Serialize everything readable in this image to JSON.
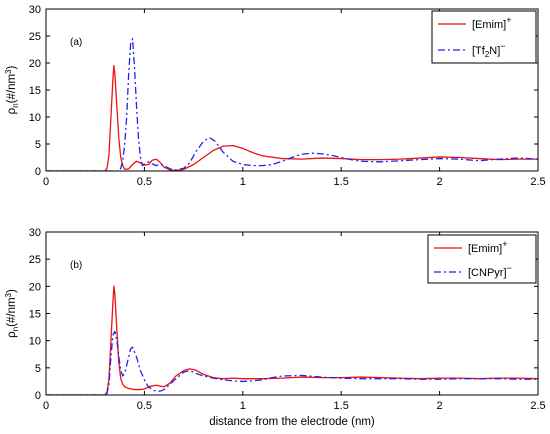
{
  "chart_data": [
    {
      "type": "line",
      "panel_label": "(a)",
      "xlabel": "",
      "ylabel": "ρ",
      "ylabel_sub": "n",
      "ylabel_unit": "(#/nm",
      "ylabel_sup": "3",
      "ylabel_close": ")",
      "xlim": [
        0,
        2.5
      ],
      "ylim": [
        0,
        30
      ],
      "xticks": [
        0,
        0.5,
        1,
        1.5,
        2,
        2.5
      ],
      "xtick_labels": [
        "0",
        "0.5",
        "1",
        "1.5",
        "2",
        "2.5"
      ],
      "yticks": [
        0,
        5,
        10,
        15,
        20,
        25,
        30
      ],
      "ytick_labels": [
        "0",
        "5",
        "10",
        "15",
        "20",
        "25",
        "30"
      ],
      "grid": false,
      "legend_position": "top-right",
      "series": [
        {
          "name": "[Emim]",
          "name_sup": "+",
          "color": "#ee1111",
          "style": "solid",
          "x": [
            0,
            0.3,
            0.31,
            0.32,
            0.33,
            0.34,
            0.345,
            0.35,
            0.36,
            0.37,
            0.38,
            0.39,
            0.4,
            0.42,
            0.44,
            0.46,
            0.48,
            0.5,
            0.52,
            0.54,
            0.56,
            0.58,
            0.6,
            0.63,
            0.66,
            0.7,
            0.75,
            0.8,
            0.85,
            0.9,
            0.95,
            1.0,
            1.05,
            1.1,
            1.2,
            1.3,
            1.4,
            1.5,
            1.6,
            1.7,
            1.8,
            1.9,
            2.0,
            2.1,
            2.2,
            2.3,
            2.4,
            2.5
          ],
          "y": [
            0,
            0,
            0.5,
            3,
            10,
            17,
            19.5,
            18,
            12,
            6,
            2.5,
            1,
            0.3,
            0.4,
            1.2,
            1.8,
            1.5,
            1.1,
            1.2,
            2,
            2.2,
            1.6,
            0.7,
            0.2,
            0.1,
            0.3,
            1.2,
            2.5,
            3.8,
            4.6,
            4.7,
            4.2,
            3.4,
            2.8,
            2.3,
            2.2,
            2.4,
            2.3,
            2.1,
            2.1,
            2.2,
            2.4,
            2.6,
            2.5,
            2.3,
            2.1,
            2.2,
            2.2
          ]
        },
        {
          "name": "[Tf",
          "name_sub": "2",
          "name_rest": "N]",
          "name_sup": "−",
          "color": "#2222ee",
          "style": "dashdot",
          "x": [
            0,
            0.37,
            0.38,
            0.39,
            0.4,
            0.41,
            0.42,
            0.43,
            0.44,
            0.45,
            0.46,
            0.47,
            0.48,
            0.49,
            0.5,
            0.52,
            0.54,
            0.56,
            0.58,
            0.6,
            0.63,
            0.66,
            0.7,
            0.73,
            0.76,
            0.8,
            0.83,
            0.86,
            0.9,
            0.95,
            1.0,
            1.05,
            1.1,
            1.15,
            1.2,
            1.25,
            1.3,
            1.35,
            1.4,
            1.45,
            1.5,
            1.55,
            1.6,
            1.7,
            1.8,
            1.9,
            2.0,
            2.1,
            2.2,
            2.3,
            2.4,
            2.5
          ],
          "y": [
            0,
            0,
            0.5,
            2,
            5,
            10,
            18,
            23.5,
            24.5,
            19,
            12,
            6,
            2.5,
            1,
            1.3,
            1.7,
            1.3,
            1,
            1.3,
            1,
            0.4,
            0.2,
            0.5,
            1.5,
            3.5,
            5.5,
            6.2,
            5.5,
            3.5,
            1.8,
            1.2,
            1,
            1,
            1.2,
            1.8,
            2.5,
            3.1,
            3.3,
            3.2,
            2.9,
            2.5,
            2.1,
            1.8,
            1.7,
            1.9,
            2.1,
            2.3,
            2.2,
            1.9,
            2.2,
            2.4,
            2.2
          ]
        }
      ]
    },
    {
      "type": "line",
      "panel_label": "(b)",
      "xlabel": "distance from the electrode (nm)",
      "ylabel": "ρ",
      "ylabel_sub": "n",
      "ylabel_unit": "(#/nm",
      "ylabel_sup": "3",
      "ylabel_close": ")",
      "xlim": [
        0,
        2.5
      ],
      "ylim": [
        0,
        30
      ],
      "xticks": [
        0,
        0.5,
        1,
        1.5,
        2,
        2.5
      ],
      "xtick_labels": [
        "0",
        "0.5",
        "1",
        "1.5",
        "2",
        "2.5"
      ],
      "yticks": [
        0,
        5,
        10,
        15,
        20,
        25,
        30
      ],
      "ytick_labels": [
        "0",
        "5",
        "10",
        "15",
        "20",
        "25",
        "30"
      ],
      "grid": false,
      "legend_position": "top-right",
      "series": [
        {
          "name": "[Emim]",
          "name_sup": "+",
          "color": "#ee1111",
          "style": "solid",
          "x": [
            0,
            0.3,
            0.31,
            0.32,
            0.33,
            0.34,
            0.345,
            0.35,
            0.36,
            0.37,
            0.38,
            0.39,
            0.4,
            0.42,
            0.45,
            0.48,
            0.5,
            0.53,
            0.56,
            0.6,
            0.63,
            0.66,
            0.7,
            0.73,
            0.76,
            0.8,
            0.85,
            0.9,
            0.95,
            1.0,
            1.1,
            1.2,
            1.3,
            1.4,
            1.5,
            1.6,
            1.7,
            1.8,
            1.9,
            2.0,
            2.1,
            2.2,
            2.3,
            2.4,
            2.5
          ],
          "y": [
            0,
            0,
            0.5,
            3,
            10,
            17,
            20,
            18.5,
            12,
            6,
            3,
            2,
            1.5,
            1.2,
            1,
            1,
            1.1,
            1.6,
            1.8,
            1.5,
            2.2,
            3.5,
            4.5,
            4.8,
            4.6,
            3.8,
            3.2,
            3,
            3.1,
            3,
            3,
            3.1,
            3.3,
            3.2,
            3.2,
            3.3,
            3.2,
            3.1,
            3,
            3.1,
            3.1,
            3,
            3.1,
            3.1,
            3
          ]
        },
        {
          "name": "[CNPyr]",
          "name_sup": "−",
          "color": "#2222ee",
          "style": "dashdot",
          "x": [
            0,
            0.3,
            0.31,
            0.32,
            0.33,
            0.34,
            0.35,
            0.36,
            0.37,
            0.38,
            0.39,
            0.4,
            0.42,
            0.43,
            0.44,
            0.46,
            0.48,
            0.5,
            0.52,
            0.55,
            0.58,
            0.6,
            0.63,
            0.66,
            0.7,
            0.73,
            0.76,
            0.8,
            0.85,
            0.9,
            0.95,
            1.0,
            1.05,
            1.1,
            1.15,
            1.2,
            1.3,
            1.4,
            1.5,
            1.6,
            1.7,
            1.8,
            1.9,
            2.0,
            2.1,
            2.2,
            2.3,
            2.4,
            2.5
          ],
          "y": [
            0,
            0,
            0.3,
            2,
            7,
            11,
            11.7,
            10,
            7,
            4.5,
            3.5,
            4,
            7,
            8.5,
            8.8,
            7,
            4.5,
            2.8,
            1.5,
            0.8,
            0.7,
            1,
            2,
            3,
            4.2,
            4.5,
            4,
            3.5,
            3.1,
            2.8,
            2.6,
            2.5,
            2.6,
            2.8,
            3.2,
            3.5,
            3.6,
            3.3,
            3.1,
            3,
            3,
            3,
            2.9,
            2.9,
            3,
            3,
            3,
            2.9,
            2.9
          ]
        }
      ]
    }
  ]
}
